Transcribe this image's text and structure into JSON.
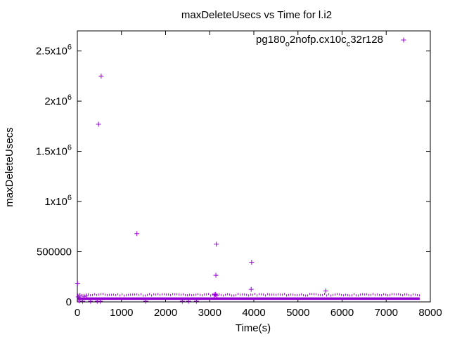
{
  "chart_data": {
    "type": "scatter",
    "title": "maxDeleteUsecs vs Time for l.i2",
    "xlabel": "Time(s)",
    "ylabel": "maxDeleteUsecs",
    "xlim": [
      0,
      8000
    ],
    "ylim": [
      0,
      2700000
    ],
    "x_ticks": [
      {
        "value": 0,
        "label": "0"
      },
      {
        "value": 1000,
        "label": "1000"
      },
      {
        "value": 2000,
        "label": "2000"
      },
      {
        "value": 3000,
        "label": "3000"
      },
      {
        "value": 4000,
        "label": "4000"
      },
      {
        "value": 5000,
        "label": "5000"
      },
      {
        "value": 6000,
        "label": "6000"
      },
      {
        "value": 7000,
        "label": "7000"
      },
      {
        "value": 8000,
        "label": "8000"
      }
    ],
    "y_ticks": [
      {
        "value": 0,
        "label": "0",
        "sup": ""
      },
      {
        "value": 500000,
        "label": "500000",
        "sup": ""
      },
      {
        "value": 1000000,
        "label": "1x10",
        "sup": "6"
      },
      {
        "value": 1500000,
        "label": "1.5x10",
        "sup": "6"
      },
      {
        "value": 2000000,
        "label": "2x10",
        "sup": "6"
      },
      {
        "value": 2500000,
        "label": "2.5x10",
        "sup": "6"
      }
    ],
    "grid": false,
    "legend_position": "top-right",
    "marker": "+",
    "color": "#9400d3",
    "series": [
      {
        "name": "pg180_o2nofp.cx10c_c32r128",
        "name_parts": [
          {
            "text": "pg180",
            "sub": false
          },
          {
            "text": "o",
            "sub": true
          },
          {
            "text": "2nofp.cx10c",
            "sub": false
          },
          {
            "text": "c",
            "sub": true
          },
          {
            "text": "32r128",
            "sub": false
          }
        ],
        "band": {
          "x_start": 10,
          "x_end": 7760,
          "y_low": 20000,
          "y_high": 45000
        },
        "outliers": [
          [
            5,
            185000
          ],
          [
            480,
            1770000
          ],
          [
            540,
            2250000
          ],
          [
            1350,
            680000
          ],
          [
            3150,
            575000
          ],
          [
            3140,
            265000
          ],
          [
            3950,
            395000
          ],
          [
            3940,
            125000
          ],
          [
            5630,
            110000
          ],
          [
            3100,
            70000
          ],
          [
            3130,
            75000
          ],
          [
            3160,
            65000
          ],
          [
            20,
            50000
          ],
          [
            60,
            60000
          ],
          [
            150,
            55000
          ],
          [
            200,
            60000
          ],
          [
            40,
            10000
          ],
          [
            120,
            5000
          ],
          [
            300,
            0
          ],
          [
            450,
            0
          ],
          [
            520,
            0
          ],
          [
            1550,
            0
          ],
          [
            2380,
            0
          ],
          [
            2520,
            0
          ],
          [
            2700,
            5000
          ]
        ]
      }
    ]
  }
}
